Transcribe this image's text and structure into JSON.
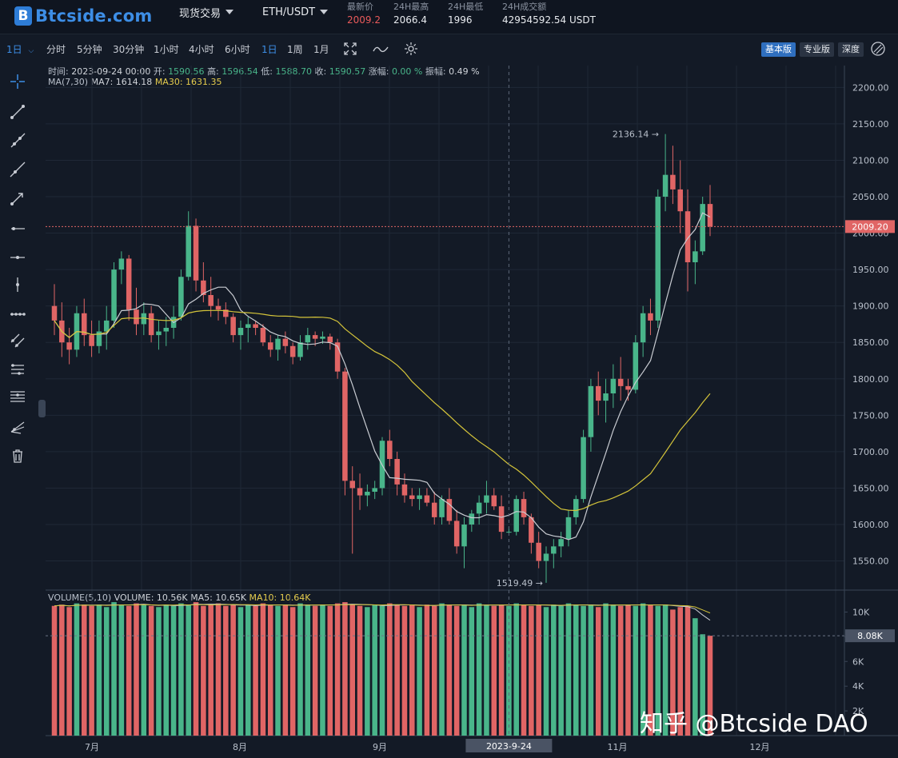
{
  "header": {
    "logo_mark": "B",
    "logo_text": "Btcside.com",
    "menu_trade": "现货交易",
    "pair": "ETH/USDT",
    "stats": [
      {
        "label": "最新价",
        "value": "2009.2",
        "color": "#e85a5a"
      },
      {
        "label": "24H最高",
        "value": "2066.4",
        "color": "#e8ebef"
      },
      {
        "label": "24H最低",
        "value": "1996",
        "color": "#e8ebef"
      },
      {
        "label": "24H成交额",
        "value": "42954592.54 USDT",
        "color": "#e8ebef"
      }
    ]
  },
  "toolbar": {
    "period_select": "1日",
    "intervals": [
      "分时",
      "5分钟",
      "30分钟",
      "1小时",
      "4小时",
      "6小时",
      "1日",
      "1周",
      "1月"
    ],
    "active_interval": "1日",
    "modes": [
      "基本版",
      "专业版",
      "深度"
    ],
    "active_mode": "基本版"
  },
  "info_line": {
    "time_label": "时间:",
    "time": "2023-09-24  00:00",
    "open_label": "开:",
    "open": "1590.56",
    "high_label": "高:",
    "high": "1596.54",
    "low_label": "低:",
    "low": "1588.70",
    "close_label": "收:",
    "close": "1590.57",
    "change_label": "涨幅:",
    "change": "0.00 %",
    "amp_label": "振幅:",
    "amp": "0.49 %"
  },
  "ma_line": {
    "ma_title": "MA(7,30)",
    "ma7_label": "MA7: 1614.18",
    "ma30_label": "MA30: 1631.35"
  },
  "volume_line": {
    "title": "VOLUME(5,10)",
    "volume": "VOLUME: 10.56K",
    "ma5": "MA5: 10.65K",
    "ma10": "MA10: 10.64K"
  },
  "colors": {
    "up": "#49b58a",
    "down": "#e06565",
    "ma7": "#c9ccd2",
    "ma30": "#d4c43a",
    "bg": "#131a26",
    "grid": "#1f2836"
  },
  "chart_data": {
    "type": "candlestick",
    "title": "",
    "price_axis_ticks": [
      "2200.00",
      "2150.00",
      "2100.00",
      "2050.00",
      "2000.00",
      "1950.00",
      "1900.00",
      "1850.00",
      "1800.00",
      "1750.00",
      "1700.00",
      "1650.00",
      "1600.00",
      "1550.00"
    ],
    "price_ylim": [
      1510,
      2230
    ],
    "volume_axis_ticks": [
      "10K",
      "8K",
      "6K",
      "4K",
      "2K"
    ],
    "volume_ylim": [
      0,
      11000
    ],
    "x_ticks": [
      "7月",
      "8月",
      "9月",
      "11月",
      "12月"
    ],
    "crosshair_date": "2023-9-24",
    "current_price_label": "2009.20",
    "current_volume_label": "8.08K",
    "max_label": "2136.14",
    "min_label": "1519.49",
    "candles": [
      [
        1900,
        1930,
        1860,
        1880
      ],
      [
        1880,
        1905,
        1830,
        1850
      ],
      [
        1850,
        1870,
        1820,
        1840
      ],
      [
        1840,
        1900,
        1830,
        1890
      ],
      [
        1890,
        1910,
        1845,
        1860
      ],
      [
        1860,
        1880,
        1830,
        1845
      ],
      [
        1845,
        1880,
        1835,
        1865
      ],
      [
        1865,
        1900,
        1840,
        1880
      ],
      [
        1880,
        1960,
        1870,
        1950
      ],
      [
        1950,
        1975,
        1930,
        1965
      ],
      [
        1965,
        1970,
        1880,
        1895
      ],
      [
        1895,
        1925,
        1860,
        1875
      ],
      [
        1875,
        1905,
        1860,
        1890
      ],
      [
        1890,
        1900,
        1850,
        1860
      ],
      [
        1860,
        1880,
        1840,
        1865
      ],
      [
        1865,
        1885,
        1845,
        1870
      ],
      [
        1870,
        1900,
        1855,
        1885
      ],
      [
        1885,
        1950,
        1880,
        1940
      ],
      [
        1940,
        2030,
        1935,
        2010
      ],
      [
        2010,
        2020,
        1920,
        1935
      ],
      [
        1935,
        1960,
        1905,
        1915
      ],
      [
        1915,
        1940,
        1885,
        1900
      ],
      [
        1900,
        1910,
        1880,
        1895
      ],
      [
        1895,
        1905,
        1875,
        1885
      ],
      [
        1885,
        1890,
        1850,
        1860
      ],
      [
        1860,
        1880,
        1840,
        1870
      ],
      [
        1870,
        1885,
        1850,
        1875
      ],
      [
        1875,
        1880,
        1860,
        1870
      ],
      [
        1870,
        1875,
        1845,
        1850
      ],
      [
        1850,
        1860,
        1830,
        1840
      ],
      [
        1840,
        1860,
        1825,
        1855
      ],
      [
        1855,
        1865,
        1835,
        1845
      ],
      [
        1845,
        1850,
        1820,
        1830
      ],
      [
        1830,
        1860,
        1825,
        1850
      ],
      [
        1850,
        1870,
        1840,
        1860
      ],
      [
        1860,
        1865,
        1845,
        1855
      ],
      [
        1855,
        1865,
        1848,
        1858
      ],
      [
        1858,
        1862,
        1840,
        1850
      ],
      [
        1850,
        1855,
        1800,
        1810
      ],
      [
        1810,
        1815,
        1640,
        1660
      ],
      [
        1660,
        1680,
        1560,
        1650
      ],
      [
        1650,
        1670,
        1620,
        1640
      ],
      [
        1640,
        1655,
        1625,
        1645
      ],
      [
        1645,
        1660,
        1635,
        1650
      ],
      [
        1650,
        1720,
        1640,
        1715
      ],
      [
        1715,
        1730,
        1680,
        1690
      ],
      [
        1690,
        1700,
        1640,
        1655
      ],
      [
        1655,
        1670,
        1630,
        1640
      ],
      [
        1640,
        1650,
        1625,
        1635
      ],
      [
        1635,
        1650,
        1620,
        1640
      ],
      [
        1640,
        1650,
        1625,
        1630
      ],
      [
        1630,
        1645,
        1600,
        1610
      ],
      [
        1610,
        1640,
        1600,
        1635
      ],
      [
        1635,
        1650,
        1600,
        1605
      ],
      [
        1605,
        1620,
        1560,
        1570
      ],
      [
        1570,
        1610,
        1540,
        1600
      ],
      [
        1600,
        1620,
        1590,
        1615
      ],
      [
        1615,
        1640,
        1600,
        1630
      ],
      [
        1630,
        1660,
        1615,
        1640
      ],
      [
        1640,
        1650,
        1620,
        1625
      ],
      [
        1625,
        1640,
        1580,
        1590
      ],
      [
        1590,
        1597,
        1588,
        1590
      ],
      [
        1590,
        1640,
        1585,
        1635
      ],
      [
        1635,
        1645,
        1600,
        1610
      ],
      [
        1610,
        1615,
        1560,
        1575
      ],
      [
        1575,
        1590,
        1540,
        1550
      ],
      [
        1550,
        1570,
        1520,
        1560
      ],
      [
        1560,
        1580,
        1540,
        1570
      ],
      [
        1570,
        1590,
        1555,
        1580
      ],
      [
        1580,
        1620,
        1570,
        1610
      ],
      [
        1610,
        1640,
        1600,
        1635
      ],
      [
        1635,
        1730,
        1630,
        1720
      ],
      [
        1720,
        1800,
        1700,
        1790
      ],
      [
        1790,
        1810,
        1750,
        1770
      ],
      [
        1770,
        1800,
        1740,
        1780
      ],
      [
        1780,
        1820,
        1760,
        1800
      ],
      [
        1800,
        1830,
        1770,
        1790
      ],
      [
        1790,
        1800,
        1770,
        1785
      ],
      [
        1785,
        1860,
        1780,
        1850
      ],
      [
        1850,
        1900,
        1830,
        1890
      ],
      [
        1890,
        1910,
        1860,
        1880
      ],
      [
        1880,
        2060,
        1870,
        2050
      ],
      [
        2050,
        2136,
        2030,
        2080
      ],
      [
        2080,
        2120,
        2040,
        2060
      ],
      [
        2060,
        2100,
        2000,
        2030
      ],
      [
        2030,
        2060,
        1920,
        1960
      ],
      [
        1960,
        1990,
        1930,
        1975
      ],
      [
        1975,
        2050,
        1970,
        2040
      ],
      [
        2040,
        2066,
        1996,
        2009
      ]
    ],
    "volumes": [
      10.5,
      10.6,
      10.4,
      10.7,
      10.6,
      10.5,
      10.6,
      10.4,
      10.8,
      10.6,
      10.5,
      10.7,
      10.6,
      10.5,
      10.4,
      10.6,
      10.5,
      10.7,
      10.6,
      10.8,
      10.5,
      10.6,
      10.7,
      10.5,
      10.6,
      10.4,
      10.6,
      10.5,
      10.7,
      10.6,
      10.5,
      10.6,
      10.4,
      10.7,
      10.6,
      10.5,
      10.6,
      10.5,
      10.7,
      10.8,
      10.6,
      10.5,
      10.4,
      10.6,
      10.5,
      10.7,
      10.6,
      10.5,
      10.6,
      10.4,
      10.6,
      10.5,
      10.7,
      10.6,
      10.5,
      10.6,
      10.4,
      10.7,
      10.6,
      10.5,
      10.6,
      10.5,
      10.7,
      10.6,
      10.5,
      10.6,
      10.4,
      10.6,
      10.5,
      10.7,
      10.6,
      10.5,
      10.6,
      10.4,
      10.7,
      10.6,
      10.5,
      10.6,
      10.5,
      10.7,
      10.6,
      10.5,
      10.6,
      10.2,
      10.4,
      10.5,
      9.5,
      8.2,
      8.08
    ]
  },
  "watermark": "知乎 @Btcside DAO"
}
